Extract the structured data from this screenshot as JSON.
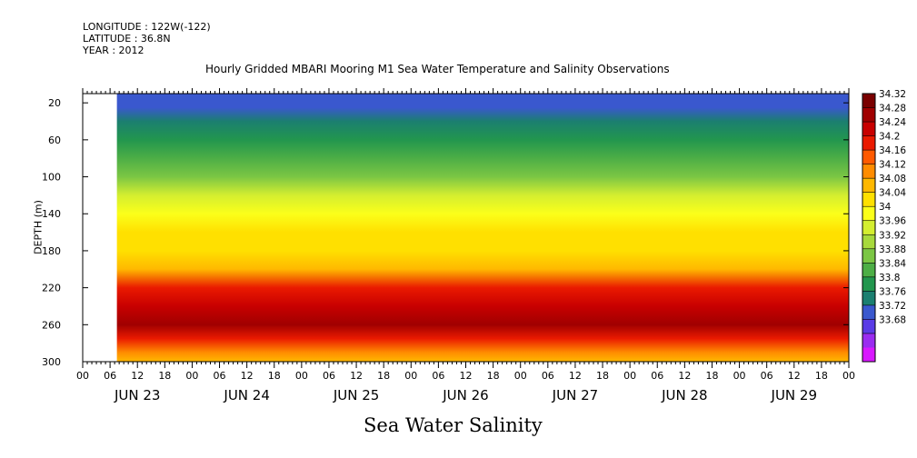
{
  "header": {
    "longitude": "LONGITUDE : 122W(-122)",
    "latitude": "LATITUDE : 36.8N",
    "year": "YEAR : 2012"
  },
  "chart_data": {
    "type": "heatmap",
    "title": "Hourly Gridded MBARI Mooring M1 Sea Water Temperature and Salinity Observations",
    "xlabel": "Sea Water Salinity",
    "ylabel": "DEPTH (m)",
    "x_range_hours": [
      0,
      168
    ],
    "x_data_start_hour": 7.5,
    "y_range": [
      300,
      10
    ],
    "y_ticks": [
      20,
      60,
      100,
      140,
      180,
      220,
      260,
      300
    ],
    "hour_tick_labels": [
      "00",
      "06",
      "12",
      "18",
      "00",
      "06",
      "12",
      "18",
      "00",
      "06",
      "12",
      "18",
      "00",
      "06",
      "12",
      "18",
      "00",
      "06",
      "12",
      "18",
      "00",
      "06",
      "12",
      "18",
      "00",
      "06",
      "12",
      "18",
      "00"
    ],
    "day_labels": [
      "JUN 23",
      "JUN 24",
      "JUN 25",
      "JUN 26",
      "JUN 27",
      "JUN 28",
      "JUN 29"
    ],
    "colorbar_levels": [
      "34.32",
      "34.28",
      "34.24",
      "34.2",
      "34.16",
      "34.12",
      "34.08",
      "34.04",
      "34",
      "33.96",
      "33.92",
      "33.88",
      "33.84",
      "33.8",
      "33.76",
      "33.72",
      "33.68"
    ],
    "colorbar_colors": [
      "#7a0000",
      "#a00000",
      "#c80000",
      "#ea1a00",
      "#ff5a00",
      "#ff8c00",
      "#ffb800",
      "#ffe000",
      "#fbff1a",
      "#d4ee30",
      "#a7d93c",
      "#7bc644",
      "#4dae46",
      "#22964e",
      "#1b7f70",
      "#3a58ce",
      "#5a3be6",
      "#9a2cf0",
      "#d818ff"
    ],
    "salinity_profile": [
      {
        "depth": 10,
        "value": 33.77
      },
      {
        "depth": 25,
        "value": 33.79
      },
      {
        "depth": 40,
        "value": 33.83
      },
      {
        "depth": 60,
        "value": 33.87
      },
      {
        "depth": 80,
        "value": 33.9
      },
      {
        "depth": 100,
        "value": 33.94
      },
      {
        "depth": 120,
        "value": 34.02
      },
      {
        "depth": 140,
        "value": 34.08
      },
      {
        "depth": 160,
        "value": 34.1
      },
      {
        "depth": 180,
        "value": 34.11
      },
      {
        "depth": 200,
        "value": 34.16
      },
      {
        "depth": 220,
        "value": 34.25
      },
      {
        "depth": 240,
        "value": 34.31
      },
      {
        "depth": 260,
        "value": 34.33
      },
      {
        "depth": 275,
        "value": 34.28
      },
      {
        "depth": 290,
        "value": 34.18
      },
      {
        "depth": 300,
        "value": 34.14
      }
    ]
  }
}
